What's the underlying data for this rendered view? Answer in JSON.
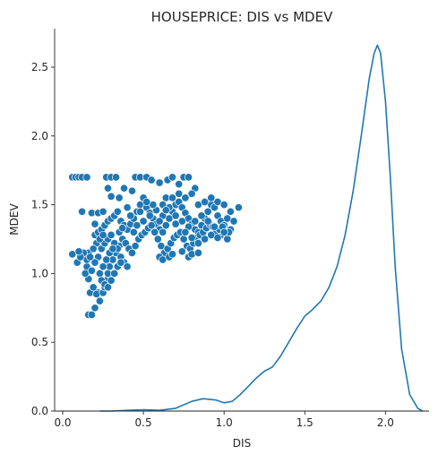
{
  "chart_data": {
    "type": "scatter",
    "title": "HOUSEPRICE: DIS vs MDEV",
    "xlabel": "DIS",
    "ylabel": "MDEV",
    "xlim": [
      -0.05,
      2.27
    ],
    "ylim": [
      0.0,
      2.78
    ],
    "xticks": [
      0.0,
      0.5,
      1.0,
      1.5,
      2.0
    ],
    "xtick_labels": [
      "0.0",
      "0.5",
      "1.0",
      "1.5",
      "2.0"
    ],
    "yticks": [
      0.0,
      0.5,
      1.0,
      1.5,
      2.0,
      2.5
    ],
    "ytick_labels": [
      "0.0",
      "0.5",
      "1.0",
      "1.5",
      "2.0",
      "2.5"
    ],
    "grid": false,
    "color": "#1f77b4",
    "scatter_points": [
      [
        0.06,
        1.7
      ],
      [
        0.08,
        1.7
      ],
      [
        0.1,
        1.7
      ],
      [
        0.12,
        1.7
      ],
      [
        0.15,
        1.7
      ],
      [
        0.06,
        1.14
      ],
      [
        0.09,
        1.08
      ],
      [
        0.12,
        1.45
      ],
      [
        0.14,
        1.12
      ],
      [
        0.15,
        1.05
      ],
      [
        0.16,
        0.96
      ],
      [
        0.17,
        0.86
      ],
      [
        0.16,
        0.7
      ],
      [
        0.18,
        0.7
      ],
      [
        0.2,
        0.75
      ],
      [
        0.22,
        0.86
      ],
      [
        0.18,
        1.44
      ],
      [
        0.22,
        1.44
      ],
      [
        0.2,
        1.36
      ],
      [
        0.25,
        1.45
      ],
      [
        0.27,
        1.7
      ],
      [
        0.3,
        1.7
      ],
      [
        0.33,
        1.7
      ],
      [
        0.28,
        1.62
      ],
      [
        0.3,
        1.56
      ],
      [
        0.2,
        1.28
      ],
      [
        0.22,
        1.3
      ],
      [
        0.24,
        1.32
      ],
      [
        0.26,
        1.35
      ],
      [
        0.28,
        1.38
      ],
      [
        0.3,
        1.4
      ],
      [
        0.32,
        1.42
      ],
      [
        0.34,
        1.45
      ],
      [
        0.36,
        1.38
      ],
      [
        0.38,
        1.35
      ],
      [
        0.4,
        1.32
      ],
      [
        0.42,
        1.36
      ],
      [
        0.44,
        1.4
      ],
      [
        0.46,
        1.45
      ],
      [
        0.48,
        1.5
      ],
      [
        0.5,
        1.55
      ],
      [
        0.52,
        1.48
      ],
      [
        0.54,
        1.44
      ],
      [
        0.56,
        1.4
      ],
      [
        0.58,
        1.36
      ],
      [
        0.6,
        1.32
      ],
      [
        0.62,
        1.3
      ],
      [
        0.64,
        1.35
      ],
      [
        0.66,
        1.4
      ],
      [
        0.68,
        1.45
      ],
      [
        0.7,
        1.5
      ],
      [
        0.72,
        1.52
      ],
      [
        0.74,
        1.48
      ],
      [
        0.76,
        1.44
      ],
      [
        0.78,
        1.4
      ],
      [
        0.8,
        1.36
      ],
      [
        0.82,
        1.32
      ],
      [
        0.84,
        1.3
      ],
      [
        0.86,
        1.35
      ],
      [
        0.88,
        1.4
      ],
      [
        0.9,
        1.45
      ],
      [
        0.92,
        1.5
      ],
      [
        0.94,
        1.48
      ],
      [
        0.96,
        1.42
      ],
      [
        0.98,
        1.38
      ],
      [
        1.0,
        1.35
      ],
      [
        1.02,
        1.4
      ],
      [
        1.04,
        1.32
      ],
      [
        1.06,
        1.38
      ],
      [
        1.09,
        1.48
      ],
      [
        0.98,
        1.28
      ],
      [
        1.02,
        1.25
      ],
      [
        1.03,
        1.3
      ],
      [
        0.45,
        1.7
      ],
      [
        0.48,
        1.7
      ],
      [
        0.52,
        1.7
      ],
      [
        0.55,
        1.68
      ],
      [
        0.6,
        1.66
      ],
      [
        0.65,
        1.68
      ],
      [
        0.68,
        1.7
      ],
      [
        0.75,
        1.7
      ],
      [
        0.78,
        1.7
      ],
      [
        0.72,
        1.65
      ],
      [
        0.82,
        1.62
      ],
      [
        0.8,
        1.58
      ],
      [
        0.43,
        1.6
      ],
      [
        0.38,
        1.62
      ],
      [
        0.35,
        1.55
      ],
      [
        0.14,
        1.0
      ],
      [
        0.15,
        1.1
      ],
      [
        0.16,
        1.15
      ],
      [
        0.18,
        1.02
      ],
      [
        0.19,
        0.9
      ],
      [
        0.21,
        0.85
      ],
      [
        0.23,
        0.8
      ],
      [
        0.25,
        0.86
      ],
      [
        0.26,
        0.9
      ],
      [
        0.27,
        0.95
      ],
      [
        0.28,
        1.0
      ],
      [
        0.29,
        1.05
      ],
      [
        0.31,
        1.1
      ],
      [
        0.33,
        1.15
      ],
      [
        0.35,
        1.2
      ],
      [
        0.37,
        1.25
      ],
      [
        0.39,
        1.22
      ],
      [
        0.41,
        1.18
      ],
      [
        0.43,
        1.15
      ],
      [
        0.45,
        1.2
      ],
      [
        0.47,
        1.25
      ],
      [
        0.49,
        1.28
      ],
      [
        0.51,
        1.3
      ],
      [
        0.53,
        1.33
      ],
      [
        0.55,
        1.35
      ],
      [
        0.57,
        1.3
      ],
      [
        0.59,
        1.25
      ],
      [
        0.61,
        1.2
      ],
      [
        0.63,
        1.15
      ],
      [
        0.65,
        1.18
      ],
      [
        0.67,
        1.22
      ],
      [
        0.69,
        1.26
      ],
      [
        0.71,
        1.28
      ],
      [
        0.73,
        1.3
      ],
      [
        0.75,
        1.25
      ],
      [
        0.77,
        1.2
      ],
      [
        0.79,
        1.18
      ],
      [
        0.81,
        1.22
      ],
      [
        0.83,
        1.26
      ],
      [
        0.85,
        1.28
      ],
      [
        0.87,
        1.3
      ],
      [
        0.89,
        1.33
      ],
      [
        0.91,
        1.36
      ],
      [
        0.93,
        1.34
      ],
      [
        0.95,
        1.3
      ],
      [
        0.97,
        1.32
      ],
      [
        0.99,
        1.34
      ],
      [
        0.24,
        1.18
      ],
      [
        0.22,
        1.12
      ],
      [
        0.2,
        1.08
      ],
      [
        0.26,
        1.22
      ],
      [
        0.28,
        1.25
      ],
      [
        0.3,
        1.28
      ],
      [
        0.32,
        1.22
      ],
      [
        0.34,
        1.18
      ],
      [
        0.36,
        1.12
      ],
      [
        0.38,
        1.08
      ],
      [
        0.4,
        1.05
      ],
      [
        0.25,
        1.05
      ],
      [
        0.27,
        1.1
      ],
      [
        0.29,
        1.15
      ],
      [
        0.31,
        1.18
      ],
      [
        0.23,
        1.0
      ],
      [
        0.24,
        0.95
      ],
      [
        0.26,
        0.92
      ],
      [
        0.28,
        0.9
      ],
      [
        0.3,
        0.95
      ],
      [
        0.32,
        1.0
      ],
      [
        0.34,
        1.05
      ],
      [
        0.36,
        1.08
      ],
      [
        0.44,
        1.3
      ],
      [
        0.46,
        1.35
      ],
      [
        0.5,
        1.38
      ],
      [
        0.54,
        1.42
      ],
      [
        0.58,
        1.46
      ],
      [
        0.62,
        1.5
      ],
      [
        0.66,
        1.48
      ],
      [
        0.7,
        1.42
      ],
      [
        0.74,
        1.38
      ],
      [
        0.78,
        1.34
      ],
      [
        0.82,
        1.38
      ],
      [
        0.86,
        1.42
      ],
      [
        0.9,
        1.38
      ],
      [
        0.94,
        1.34
      ],
      [
        0.62,
        1.42
      ],
      [
        0.64,
        1.46
      ],
      [
        0.7,
        1.36
      ],
      [
        0.76,
        1.3
      ],
      [
        0.8,
        1.26
      ],
      [
        0.84,
        1.22
      ],
      [
        0.88,
        1.25
      ],
      [
        0.92,
        1.28
      ],
      [
        0.96,
        1.26
      ],
      [
        1.0,
        1.3
      ],
      [
        0.6,
        1.38
      ],
      [
        0.56,
        1.5
      ],
      [
        0.52,
        1.52
      ],
      [
        0.48,
        1.45
      ],
      [
        0.42,
        1.42
      ],
      [
        0.4,
        1.48
      ],
      [
        0.64,
        1.55
      ],
      [
        0.68,
        1.55
      ],
      [
        0.72,
        1.58
      ],
      [
        0.76,
        1.55
      ],
      [
        0.84,
        1.5
      ],
      [
        0.88,
        1.52
      ],
      [
        0.92,
        1.55
      ],
      [
        0.96,
        1.52
      ],
      [
        1.0,
        1.5
      ],
      [
        1.04,
        1.45
      ],
      [
        0.35,
        1.3
      ],
      [
        0.37,
        1.33
      ],
      [
        0.21,
        1.22
      ],
      [
        0.19,
        1.18
      ],
      [
        0.17,
        1.12
      ],
      [
        0.13,
        1.15
      ],
      [
        0.11,
        1.12
      ],
      [
        0.1,
        1.16
      ],
      [
        0.23,
        1.25
      ],
      [
        0.25,
        1.28
      ],
      [
        0.6,
        1.12
      ],
      [
        0.62,
        1.1
      ],
      [
        0.66,
        1.12
      ],
      [
        0.68,
        1.14
      ],
      [
        0.74,
        1.16
      ],
      [
        0.78,
        1.12
      ],
      [
        0.8,
        1.14
      ],
      [
        0.84,
        1.15
      ]
    ],
    "kde": {
      "x": [
        0.23,
        0.3,
        0.4,
        0.5,
        0.6,
        0.7,
        0.8,
        0.87,
        0.95,
        1.0,
        1.05,
        1.1,
        1.15,
        1.2,
        1.25,
        1.3,
        1.35,
        1.4,
        1.45,
        1.5,
        1.55,
        1.6,
        1.65,
        1.7,
        1.75,
        1.8,
        1.85,
        1.9,
        1.93,
        1.95,
        1.97,
        2.0,
        2.03,
        2.06,
        2.1,
        2.15,
        2.2,
        2.23
      ],
      "y": [
        0.0,
        0.0,
        0.005,
        0.01,
        0.005,
        0.02,
        0.07,
        0.09,
        0.08,
        0.06,
        0.07,
        0.12,
        0.18,
        0.24,
        0.29,
        0.32,
        0.4,
        0.5,
        0.6,
        0.69,
        0.74,
        0.8,
        0.9,
        1.05,
        1.28,
        1.6,
        2.0,
        2.42,
        2.6,
        2.66,
        2.6,
        2.25,
        1.7,
        1.05,
        0.45,
        0.12,
        0.02,
        0.0
      ]
    }
  }
}
